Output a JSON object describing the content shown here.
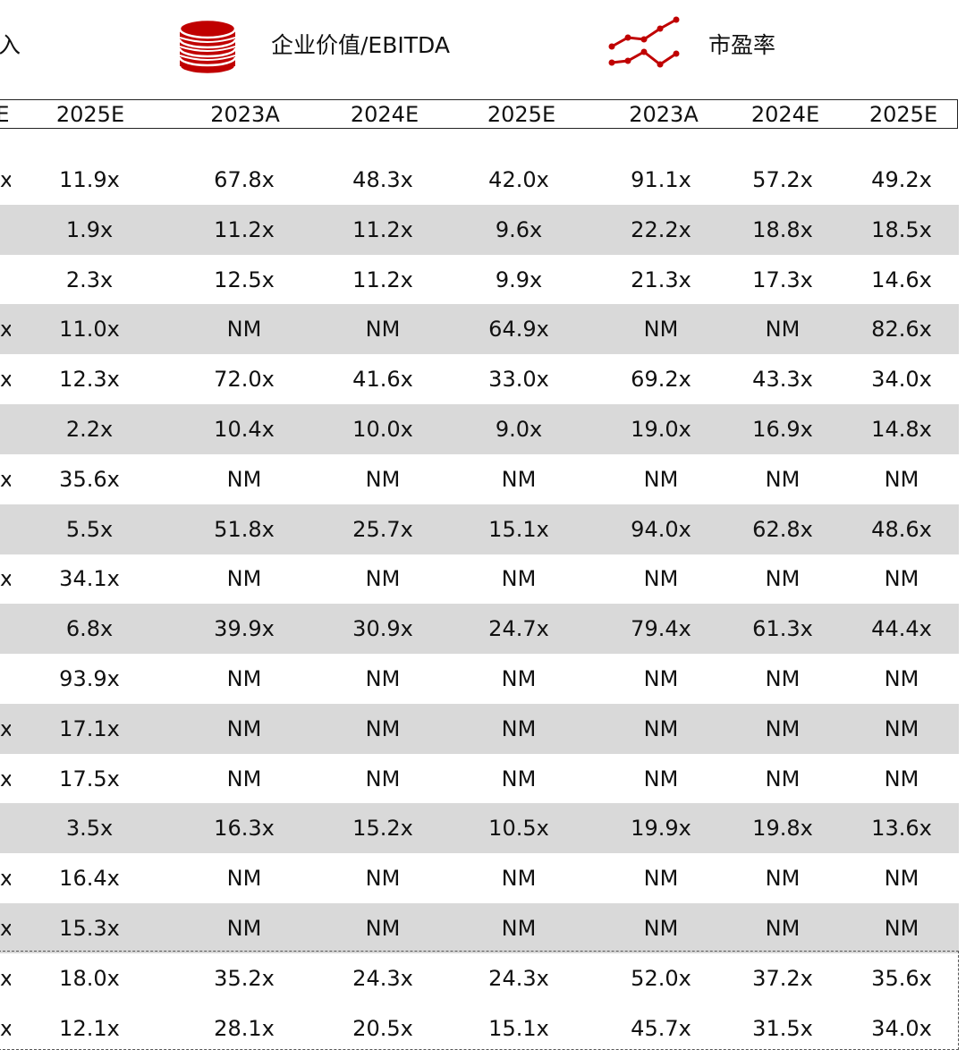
{
  "legend": {
    "revenue_label_fragment": "入",
    "ev_ebitda_label": "企业价值/EBITDA",
    "pe_label": "市盈率",
    "ev_icon": "coin-stack-icon",
    "pe_icon": "line-trend-icon",
    "accent_color": "#c00000"
  },
  "header": {
    "cut_col": "E",
    "columns": [
      "2025E",
      "2023A",
      "2024E",
      "2025E",
      "2023A",
      "2024E",
      "2025E"
    ]
  },
  "rows": [
    {
      "cut": "x",
      "v": [
        "11.9x",
        "67.8x",
        "48.3x",
        "42.0x",
        "91.1x",
        "57.2x",
        "49.2x"
      ],
      "shaded": false
    },
    {
      "cut": "",
      "v": [
        "1.9x",
        "11.2x",
        "11.2x",
        "9.6x",
        "22.2x",
        "18.8x",
        "18.5x"
      ],
      "shaded": true
    },
    {
      "cut": "",
      "v": [
        "2.3x",
        "12.5x",
        "11.2x",
        "9.9x",
        "21.3x",
        "17.3x",
        "14.6x"
      ],
      "shaded": false
    },
    {
      "cut": "x",
      "v": [
        "11.0x",
        "NM",
        "NM",
        "64.9x",
        "NM",
        "NM",
        "82.6x"
      ],
      "shaded": true
    },
    {
      "cut": "x",
      "v": [
        "12.3x",
        "72.0x",
        "41.6x",
        "33.0x",
        "69.2x",
        "43.3x",
        "34.0x"
      ],
      "shaded": false
    },
    {
      "cut": "",
      "v": [
        "2.2x",
        "10.4x",
        "10.0x",
        "9.0x",
        "19.0x",
        "16.9x",
        "14.8x"
      ],
      "shaded": true
    },
    {
      "cut": "x",
      "v": [
        "35.6x",
        "NM",
        "NM",
        "NM",
        "NM",
        "NM",
        "NM"
      ],
      "shaded": false
    },
    {
      "cut": "",
      "v": [
        "5.5x",
        "51.8x",
        "25.7x",
        "15.1x",
        "94.0x",
        "62.8x",
        "48.6x"
      ],
      "shaded": true
    },
    {
      "cut": "x",
      "v": [
        "34.1x",
        "NM",
        "NM",
        "NM",
        "NM",
        "NM",
        "NM"
      ],
      "shaded": false
    },
    {
      "cut": "",
      "v": [
        "6.8x",
        "39.9x",
        "30.9x",
        "24.7x",
        "79.4x",
        "61.3x",
        "44.4x"
      ],
      "shaded": true
    },
    {
      "cut": "",
      "v": [
        "93.9x",
        "NM",
        "NM",
        "NM",
        "NM",
        "NM",
        "NM"
      ],
      "shaded": false
    },
    {
      "cut": "x",
      "v": [
        "17.1x",
        "NM",
        "NM",
        "NM",
        "NM",
        "NM",
        "NM"
      ],
      "shaded": true
    },
    {
      "cut": "x",
      "v": [
        "17.5x",
        "NM",
        "NM",
        "NM",
        "NM",
        "NM",
        "NM"
      ],
      "shaded": false
    },
    {
      "cut": "",
      "v": [
        "3.5x",
        "16.3x",
        "15.2x",
        "10.5x",
        "19.9x",
        "19.8x",
        "13.6x"
      ],
      "shaded": true
    },
    {
      "cut": "x",
      "v": [
        "16.4x",
        "NM",
        "NM",
        "NM",
        "NM",
        "NM",
        "NM"
      ],
      "shaded": false
    },
    {
      "cut": "x",
      "v": [
        "15.3x",
        "NM",
        "NM",
        "NM",
        "NM",
        "NM",
        "NM"
      ],
      "shaded": true
    }
  ],
  "summary_rows": [
    {
      "cut": "x",
      "v": [
        "18.0x",
        "35.2x",
        "24.3x",
        "24.3x",
        "52.0x",
        "37.2x",
        "35.6x"
      ]
    },
    {
      "cut": "x",
      "v": [
        "12.1x",
        "28.1x",
        "20.5x",
        "15.1x",
        "45.7x",
        "31.5x",
        "34.0x"
      ]
    }
  ]
}
